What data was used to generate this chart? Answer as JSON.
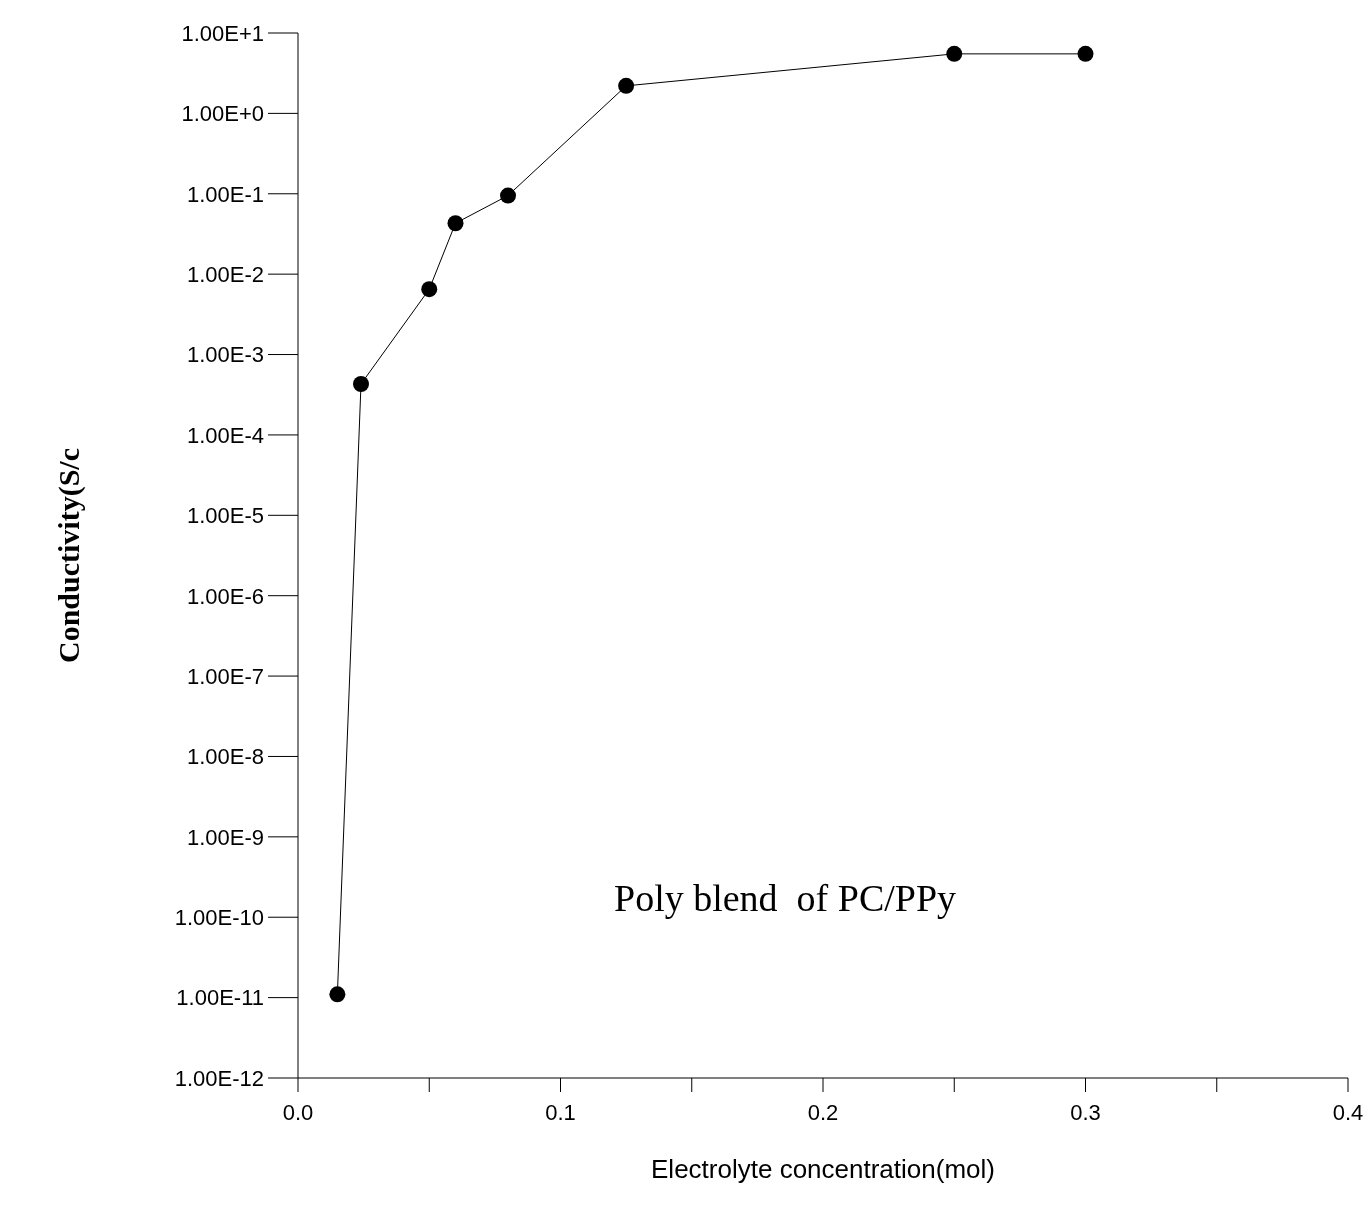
{
  "chart_data": {
    "type": "line",
    "xlabel": "Electrolyte concentration(mol)",
    "ylabel": "Conductivity(S/c",
    "annotations": [
      "Poly blend  of PC/PPy"
    ],
    "x": [
      0.015,
      0.024,
      0.05,
      0.06,
      0.08,
      0.125,
      0.25,
      0.3
    ],
    "series": [
      {
        "color": "#000000",
        "values": [
          1.1e-11,
          0.00043,
          0.0065,
          0.043,
          0.095,
          2.2,
          5.5,
          5.5
        ]
      }
    ],
    "log": "y",
    "marker": "circle",
    "line_style": "solid",
    "grid": false,
    "legend": false,
    "xlim": [
      0,
      0.4
    ],
    "ylim": [
      1e-12,
      10
    ],
    "xticks": [
      {
        "value": 0,
        "label": "0.0"
      },
      {
        "value": 0.05,
        "label": null
      },
      {
        "value": 0.1,
        "label": "0.1"
      },
      {
        "value": 0.15,
        "label": null
      },
      {
        "value": 0.2,
        "label": "0.2"
      },
      {
        "value": 0.25,
        "label": null
      },
      {
        "value": 0.3,
        "label": "0.3"
      },
      {
        "value": 0.35,
        "label": null
      },
      {
        "value": 0.4,
        "label": "0.4"
      }
    ],
    "yticks": [
      {
        "value": 1e-12,
        "label": "1.00E-12"
      },
      {
        "value": 1e-11,
        "label": "1.00E-11"
      },
      {
        "value": 1e-10,
        "label": "1.00E-10"
      },
      {
        "value": 1e-09,
        "label": "1.00E-9"
      },
      {
        "value": 1e-08,
        "label": "1.00E-8"
      },
      {
        "value": 1e-07,
        "label": "1.00E-7"
      },
      {
        "value": 1e-06,
        "label": "1.00E-6"
      },
      {
        "value": 1e-05,
        "label": "1.00E-5"
      },
      {
        "value": 0.0001,
        "label": "1.00E-4"
      },
      {
        "value": 0.001,
        "label": "1.00E-3"
      },
      {
        "value": 0.01,
        "label": "1.00E-2"
      },
      {
        "value": 0.1,
        "label": "1.00E-1"
      },
      {
        "value": 1,
        "label": "1.00E+0"
      },
      {
        "value": 10,
        "label": "1.00E+1"
      }
    ]
  }
}
